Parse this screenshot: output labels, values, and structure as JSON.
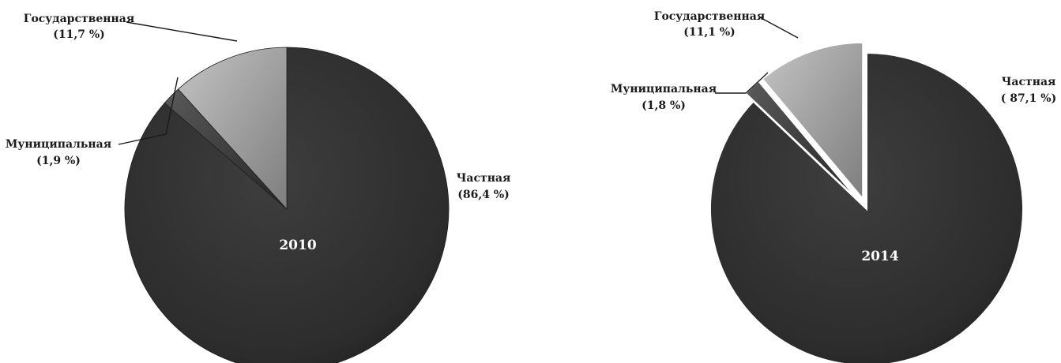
{
  "colors": {
    "private": "#2f2f2f",
    "municipal": "#3d3d3d",
    "state": "#a0a0a0",
    "year_label": "#ffffff",
    "text": "#1a1a1a"
  },
  "chart_data": [
    {
      "type": "pie",
      "title": "",
      "center_label": "2010",
      "exploded": false,
      "slices": [
        {
          "name": "Частная",
          "value": 86.4,
          "value_label": "(86,4 %)"
        },
        {
          "name": "Муниципальная",
          "value": 1.9,
          "value_label": "(1,9 %)"
        },
        {
          "name": "Государственная",
          "value": 11.7,
          "value_label": "(11,7 %)"
        }
      ]
    },
    {
      "type": "pie",
      "title": "",
      "center_label": "2014",
      "exploded": true,
      "slices": [
        {
          "name": "Частная",
          "value": 87.1,
          "value_label": "( 87,1 %)"
        },
        {
          "name": "Муниципальная",
          "value": 1.8,
          "value_label": "(1,8 %)"
        },
        {
          "name": "Государственная",
          "value": 11.1,
          "value_label": "(11,1 %)"
        }
      ]
    }
  ]
}
